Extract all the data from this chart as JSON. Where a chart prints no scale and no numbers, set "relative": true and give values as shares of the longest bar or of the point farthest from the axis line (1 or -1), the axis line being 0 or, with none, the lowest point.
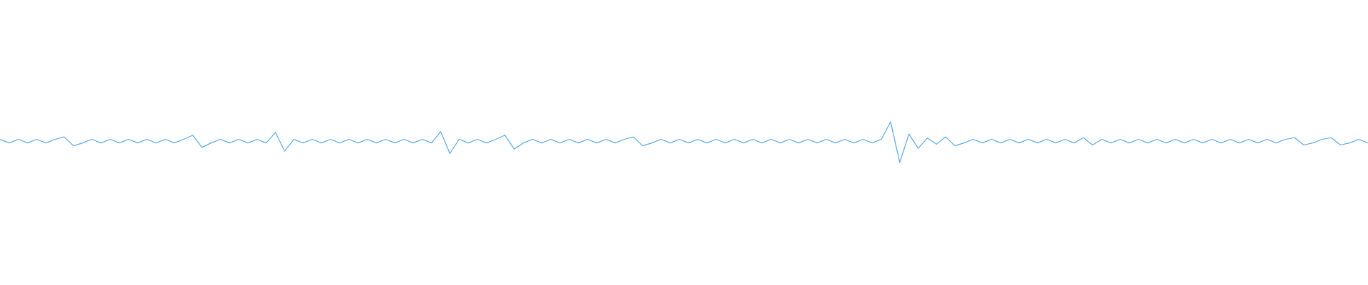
{
  "chart_data": {
    "type": "line",
    "relative": true,
    "categories": [
      null,
      null,
      null,
      null,
      null,
      null,
      null,
      null,
      null,
      null,
      null,
      null,
      null,
      null,
      null,
      null,
      null,
      null,
      null,
      null,
      null,
      null,
      null,
      null,
      null,
      null,
      null,
      null,
      null,
      null,
      null,
      null,
      null,
      null,
      null,
      null,
      null,
      null,
      null,
      null,
      null,
      null,
      null,
      null,
      null,
      null,
      null,
      null,
      null,
      null,
      null,
      null,
      null,
      null,
      null,
      null,
      null,
      null,
      null,
      null,
      null,
      null,
      null,
      null,
      null,
      null,
      null,
      null,
      null,
      null,
      null,
      null,
      null,
      null,
      null,
      null,
      null,
      null,
      null,
      null,
      null,
      null,
      null,
      null,
      null,
      null,
      null,
      null,
      null,
      null,
      null,
      null,
      null,
      null,
      null,
      null,
      null,
      null,
      null,
      null,
      null,
      null,
      null,
      null,
      null,
      null,
      null,
      null,
      null,
      null,
      null,
      null,
      null,
      null,
      null,
      null,
      null,
      null,
      null,
      null,
      null,
      null,
      null,
      null,
      null,
      null,
      null,
      null,
      null,
      null,
      null,
      null,
      null,
      null,
      null,
      null,
      null,
      null,
      null,
      null,
      null,
      null,
      null,
      null,
      null,
      null,
      null,
      null,
      null,
      null
    ],
    "series": [
      {
        "color": "#5aa9e6",
        "values": [
          0.57,
          0.48,
          0.57,
          0.48,
          0.57,
          0.48,
          0.57,
          0.63,
          0.41,
          0.48,
          0.57,
          0.48,
          0.57,
          0.48,
          0.57,
          0.48,
          0.57,
          0.48,
          0.57,
          0.48,
          0.57,
          0.67,
          0.37,
          0.48,
          0.57,
          0.48,
          0.57,
          0.48,
          0.57,
          0.48,
          0.74,
          0.28,
          0.57,
          0.48,
          0.57,
          0.48,
          0.57,
          0.48,
          0.57,
          0.48,
          0.57,
          0.48,
          0.57,
          0.48,
          0.57,
          0.48,
          0.57,
          0.48,
          0.76,
          0.22,
          0.57,
          0.48,
          0.57,
          0.48,
          0.57,
          0.67,
          0.33,
          0.48,
          0.57,
          0.48,
          0.57,
          0.48,
          0.57,
          0.48,
          0.57,
          0.48,
          0.57,
          0.48,
          0.57,
          0.63,
          0.41,
          0.48,
          0.57,
          0.48,
          0.57,
          0.48,
          0.57,
          0.48,
          0.57,
          0.48,
          0.57,
          0.48,
          0.57,
          0.48,
          0.57,
          0.48,
          0.57,
          0.48,
          0.57,
          0.48,
          0.57,
          0.48,
          0.57,
          0.48,
          0.57,
          0.48,
          0.57,
          1,
          0,
          0.7,
          0.35,
          0.6,
          0.45,
          0.63,
          0.41,
          0.48,
          0.57,
          0.48,
          0.57,
          0.48,
          0.57,
          0.48,
          0.57,
          0.48,
          0.57,
          0.48,
          0.57,
          0.48,
          0.61,
          0.43,
          0.57,
          0.48,
          0.57,
          0.48,
          0.57,
          0.48,
          0.57,
          0.48,
          0.57,
          0.48,
          0.57,
          0.48,
          0.57,
          0.48,
          0.57,
          0.48,
          0.57,
          0.48,
          0.57,
          0.48,
          0.57,
          0.61,
          0.43,
          0.48,
          0.57,
          0.61,
          0.43,
          0.48,
          0.57,
          0.48
        ]
      }
    ]
  }
}
